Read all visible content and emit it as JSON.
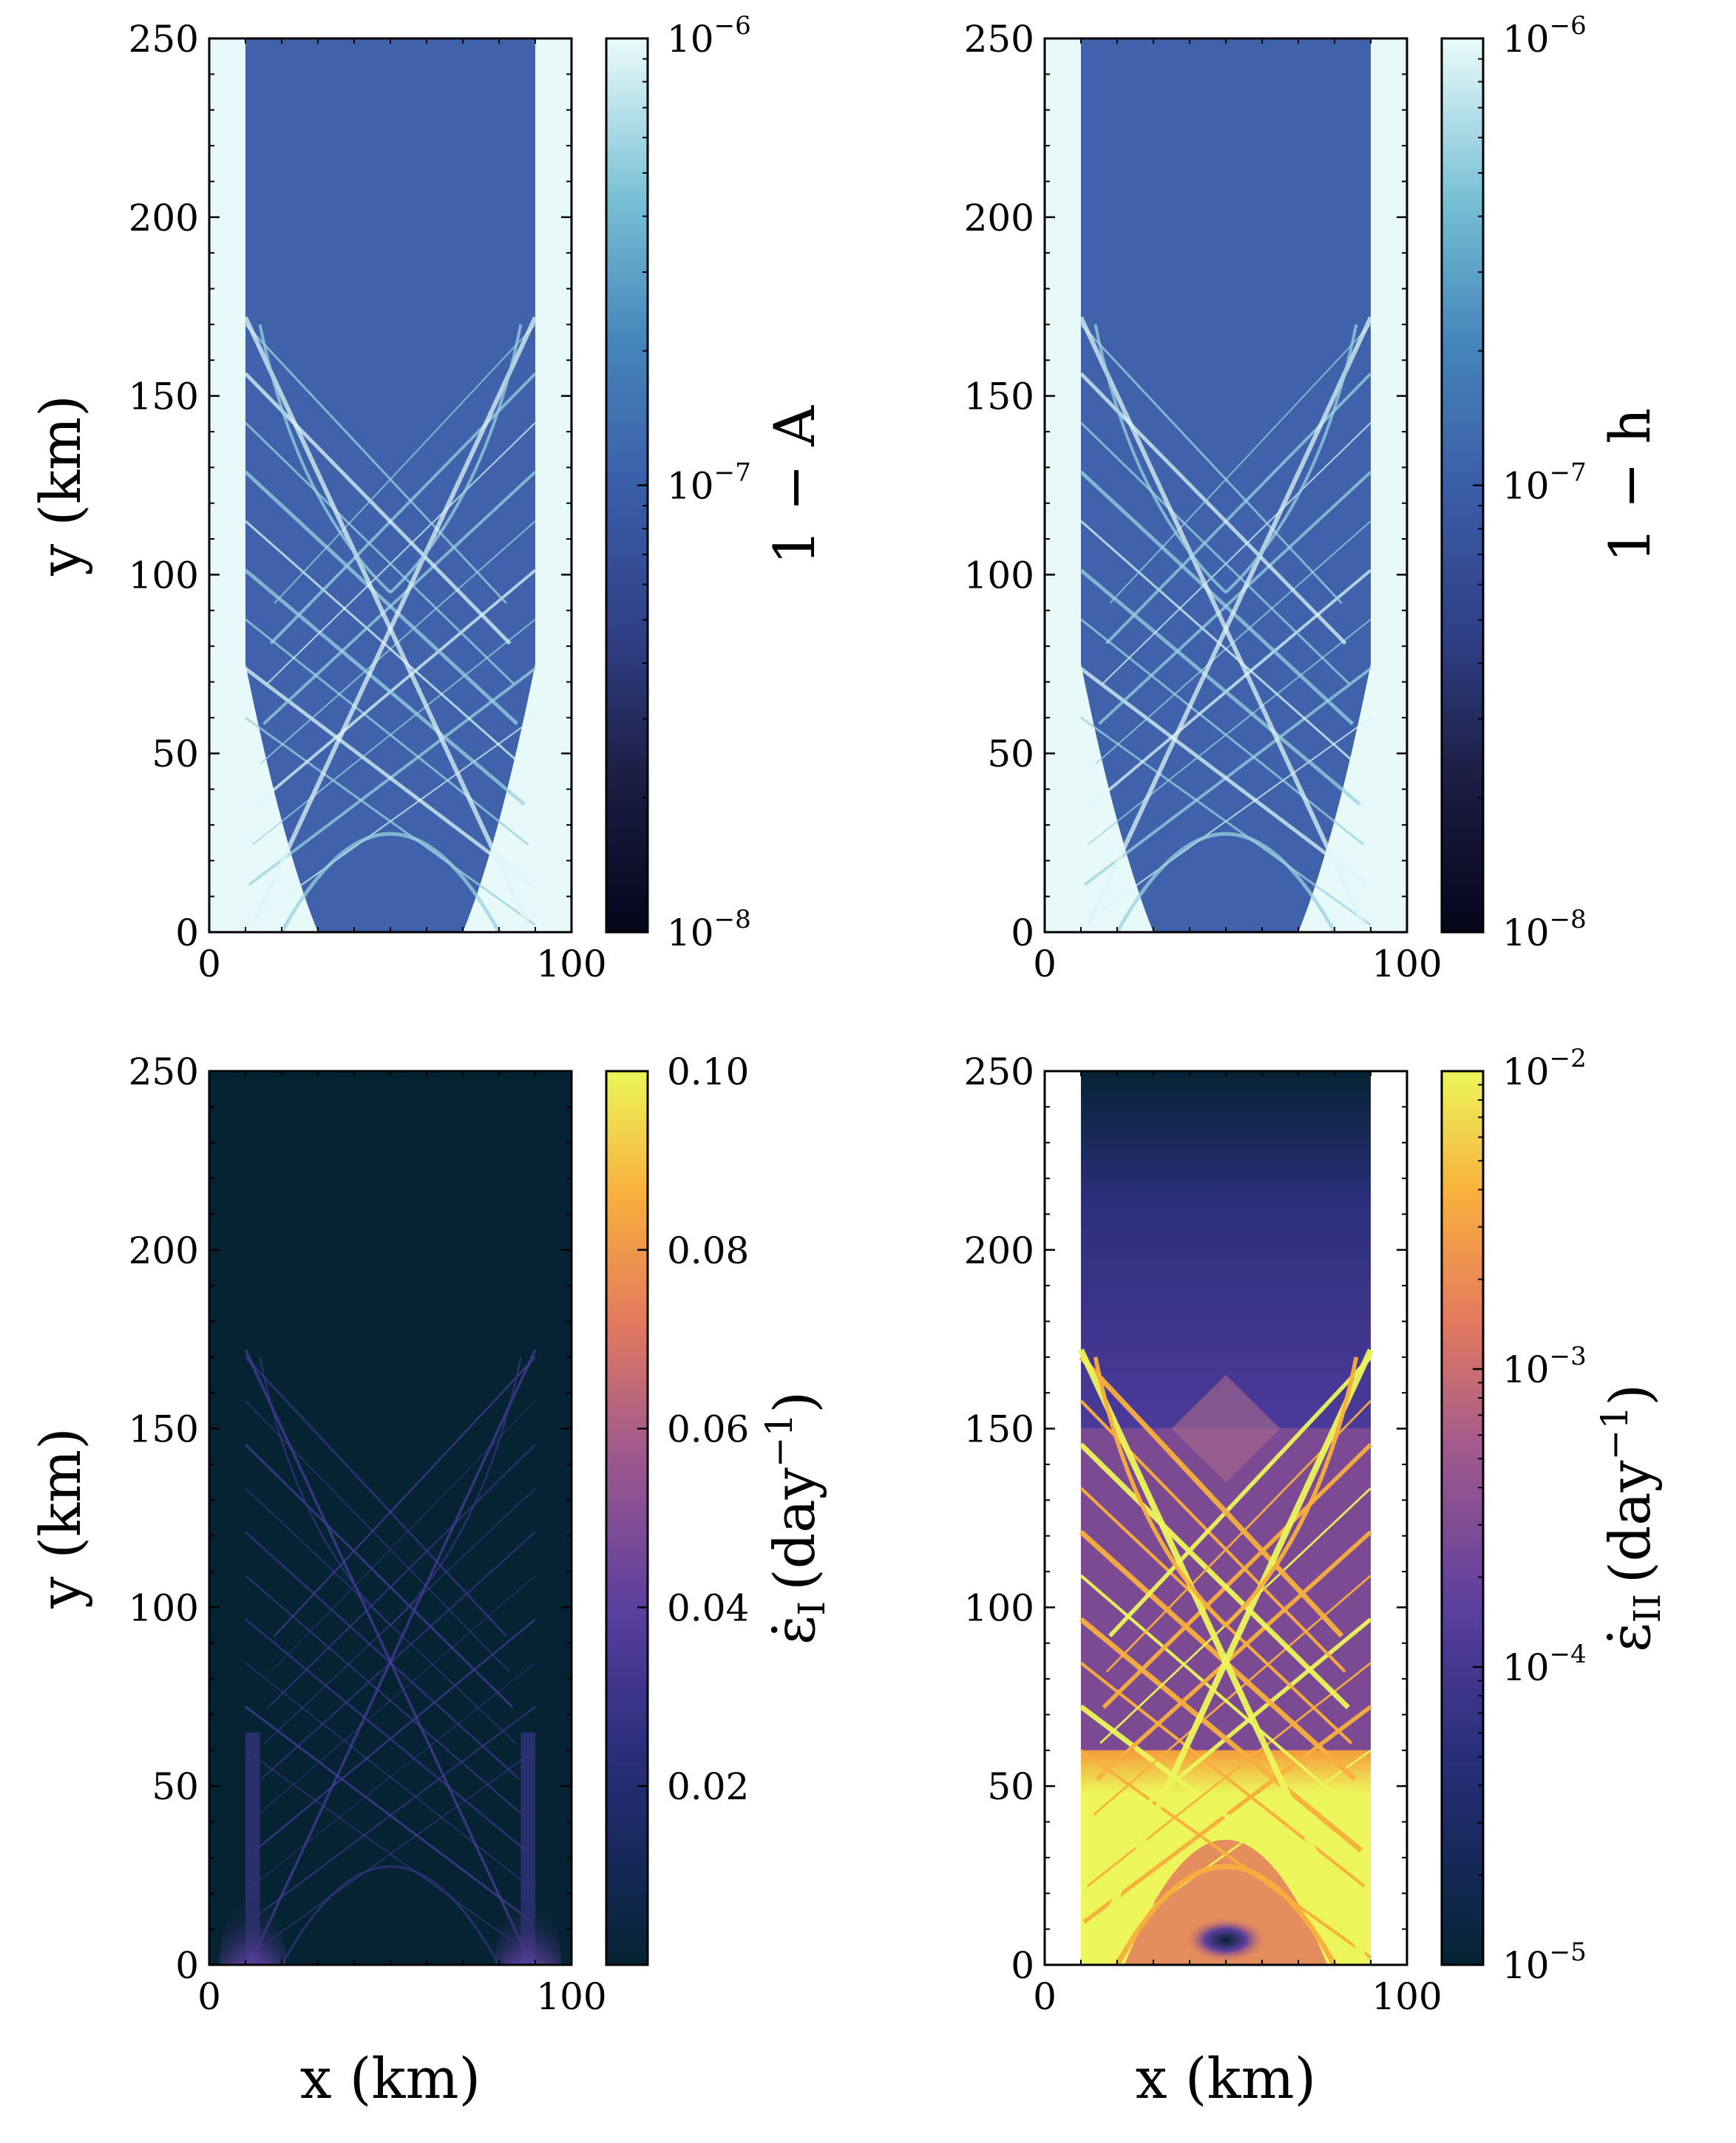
{
  "figure": {
    "x_label": "x (km)",
    "y_label": "y (km)"
  },
  "colorbars": {
    "A": {
      "label_main": "1 − A",
      "ticks": [
        "10",
        "10",
        "10"
      ],
      "exps": [
        "−6",
        "−7",
        "−8"
      ]
    },
    "h": {
      "label_main": "1 − h",
      "ticks": [
        "10",
        "10",
        "10"
      ],
      "exps": [
        "−6",
        "−7",
        "−8"
      ]
    },
    "eI": {
      "label_main": "ε̇",
      "label_sub": "I",
      "label_unit": "(day",
      "label_exp": "−1",
      "label_close": ")",
      "ticks": [
        "0.10",
        "0.08",
        "0.06",
        "0.04",
        "0.02"
      ]
    },
    "eII": {
      "label_main": "ε̇",
      "label_sub": "II",
      "label_unit": "(day",
      "label_exp": "−1",
      "label_close": ")",
      "ticks": [
        "10",
        "10",
        "10",
        "10"
      ],
      "exps": [
        "−2",
        "−3",
        "−4",
        "−5"
      ]
    }
  },
  "chart_data": [
    {
      "type": "heatmap",
      "field": "1 − A",
      "xlabel": "",
      "ylabel": "y (km)",
      "xlim": [
        0,
        100
      ],
      "ylim": [
        0,
        250
      ],
      "x_ticks": [
        0,
        100
      ],
      "y_ticks": [
        0,
        50,
        100,
        150,
        200,
        250
      ],
      "color_scale": "log",
      "color_range": [
        1e-08,
        1e-06
      ],
      "colormap": [
        "#04051a",
        "#2b2e6e",
        "#3a5ea8",
        "#4f9fc9",
        "#a9dde2",
        "#eafbfb"
      ]
    },
    {
      "type": "heatmap",
      "field": "1 − h",
      "xlabel": "",
      "ylabel": "",
      "xlim": [
        0,
        100
      ],
      "ylim": [
        0,
        250
      ],
      "x_ticks": [
        0,
        100
      ],
      "y_ticks": [
        0,
        50,
        100,
        150,
        200,
        250
      ],
      "color_scale": "log",
      "color_range": [
        1e-08,
        1e-06
      ],
      "colormap": [
        "#04051a",
        "#2b2e6e",
        "#3a5ea8",
        "#4f9fc9",
        "#a9dde2",
        "#eafbfb"
      ]
    },
    {
      "type": "heatmap",
      "field": "ε̇I (day−1)",
      "xlabel": "x (km)",
      "ylabel": "y (km)",
      "xlim": [
        0,
        100
      ],
      "ylim": [
        0,
        250
      ],
      "x_ticks": [
        0,
        100
      ],
      "y_ticks": [
        0,
        50,
        100,
        150,
        200,
        250
      ],
      "color_scale": "linear",
      "color_range": [
        0.0,
        0.1
      ],
      "colormap": [
        "#062333",
        "#2c2f7e",
        "#5b3f9e",
        "#a25a8c",
        "#e37a5e",
        "#f8ae3d",
        "#ecf65a"
      ]
    },
    {
      "type": "heatmap",
      "field": "ε̇II (day−1)",
      "xlabel": "x (km)",
      "ylabel": "",
      "xlim": [
        0,
        100
      ],
      "ylim": [
        0,
        250
      ],
      "x_ticks": [
        0,
        100
      ],
      "y_ticks": [
        0,
        50,
        100,
        150,
        200,
        250
      ],
      "color_scale": "log",
      "color_range": [
        1e-05,
        0.01
      ],
      "colormap": [
        "#062333",
        "#2c2f7e",
        "#5b3f9e",
        "#a25a8c",
        "#e37a5e",
        "#f8ae3d",
        "#ecf65a"
      ]
    }
  ]
}
